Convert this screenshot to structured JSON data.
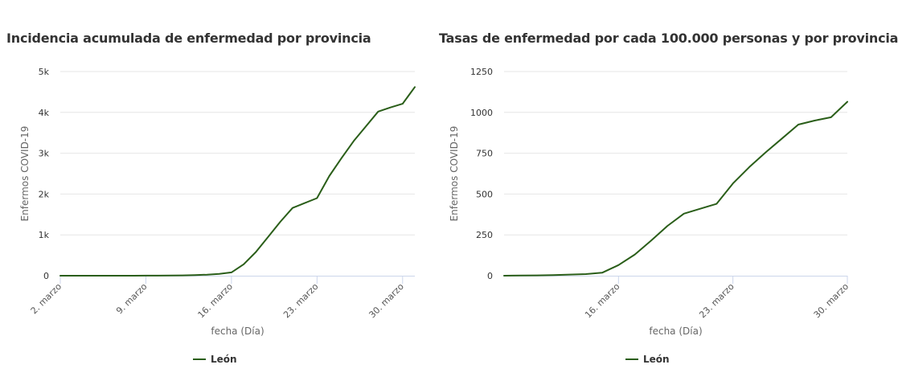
{
  "charts": [
    {
      "title": "Incidencia acumulada de enfermedad por provincia",
      "ylabel": "Enfermos COVID-19",
      "xlabel": "fecha (Día)",
      "legend": "León"
    },
    {
      "title": "Tasas de enfermedad por cada 100.000 personas y por provincia",
      "ylabel": "Enfermos COVID-19",
      "xlabel": "fecha (Día)",
      "legend": "León"
    }
  ],
  "chart_data": [
    {
      "type": "line",
      "title": "Incidencia acumulada de enfermedad por provincia",
      "xlabel": "fecha (Día)",
      "ylabel": "Enfermos COVID-19",
      "x_ticks": [
        "2. marzo",
        "9. marzo",
        "16. marzo",
        "23. marzo",
        "30. marzo"
      ],
      "x_tick_days": [
        2,
        9,
        16,
        23,
        30
      ],
      "xlim": [
        2,
        31
      ],
      "y_ticks": [
        0,
        1000,
        2000,
        3000,
        4000,
        5000
      ],
      "y_tick_labels": [
        "0",
        "1k",
        "2k",
        "3k",
        "4k",
        "5k"
      ],
      "ylim": [
        0,
        5000
      ],
      "grid": true,
      "legend_position": "bottom-center",
      "color": "#2a5e19",
      "series": [
        {
          "name": "León",
          "x": [
            2,
            3,
            4,
            5,
            6,
            7,
            8,
            9,
            10,
            11,
            12,
            13,
            14,
            15,
            16,
            17,
            18,
            19,
            20,
            21,
            22,
            23,
            24,
            25,
            26,
            27,
            28,
            29,
            30,
            31
          ],
          "values": [
            0,
            0,
            0,
            0,
            0,
            0,
            0,
            1,
            2,
            4,
            8,
            15,
            25,
            45,
            80,
            280,
            580,
            950,
            1320,
            1660,
            1780,
            1900,
            2440,
            2880,
            3300,
            3660,
            4020,
            4120,
            4210,
            4620
          ]
        }
      ]
    },
    {
      "type": "line",
      "title": "Tasas de enfermedad por cada 100.000 personas y por provincia",
      "xlabel": "fecha (Día)",
      "ylabel": "Enfermos COVID-19",
      "x_ticks": [
        "16. marzo",
        "23. marzo",
        "30. marzo"
      ],
      "x_tick_days": [
        16,
        23,
        30
      ],
      "xlim": [
        9,
        30
      ],
      "y_ticks": [
        0,
        250,
        500,
        750,
        1000,
        1250
      ],
      "y_tick_labels": [
        "0",
        "250",
        "500",
        "750",
        "1000",
        "1250"
      ],
      "ylim": [
        0,
        1250
      ],
      "grid": true,
      "legend_position": "bottom-center",
      "color": "#2a5e19",
      "series": [
        {
          "name": "León",
          "x": [
            9,
            10,
            11,
            12,
            13,
            14,
            15,
            16,
            17,
            18,
            19,
            20,
            21,
            22,
            23,
            24,
            25,
            26,
            27,
            28,
            29,
            30
          ],
          "values": [
            0,
            1,
            2,
            4,
            7,
            10,
            18,
            65,
            130,
            215,
            305,
            380,
            410,
            440,
            565,
            665,
            755,
            840,
            925,
            950,
            970,
            1065
          ]
        }
      ]
    }
  ]
}
